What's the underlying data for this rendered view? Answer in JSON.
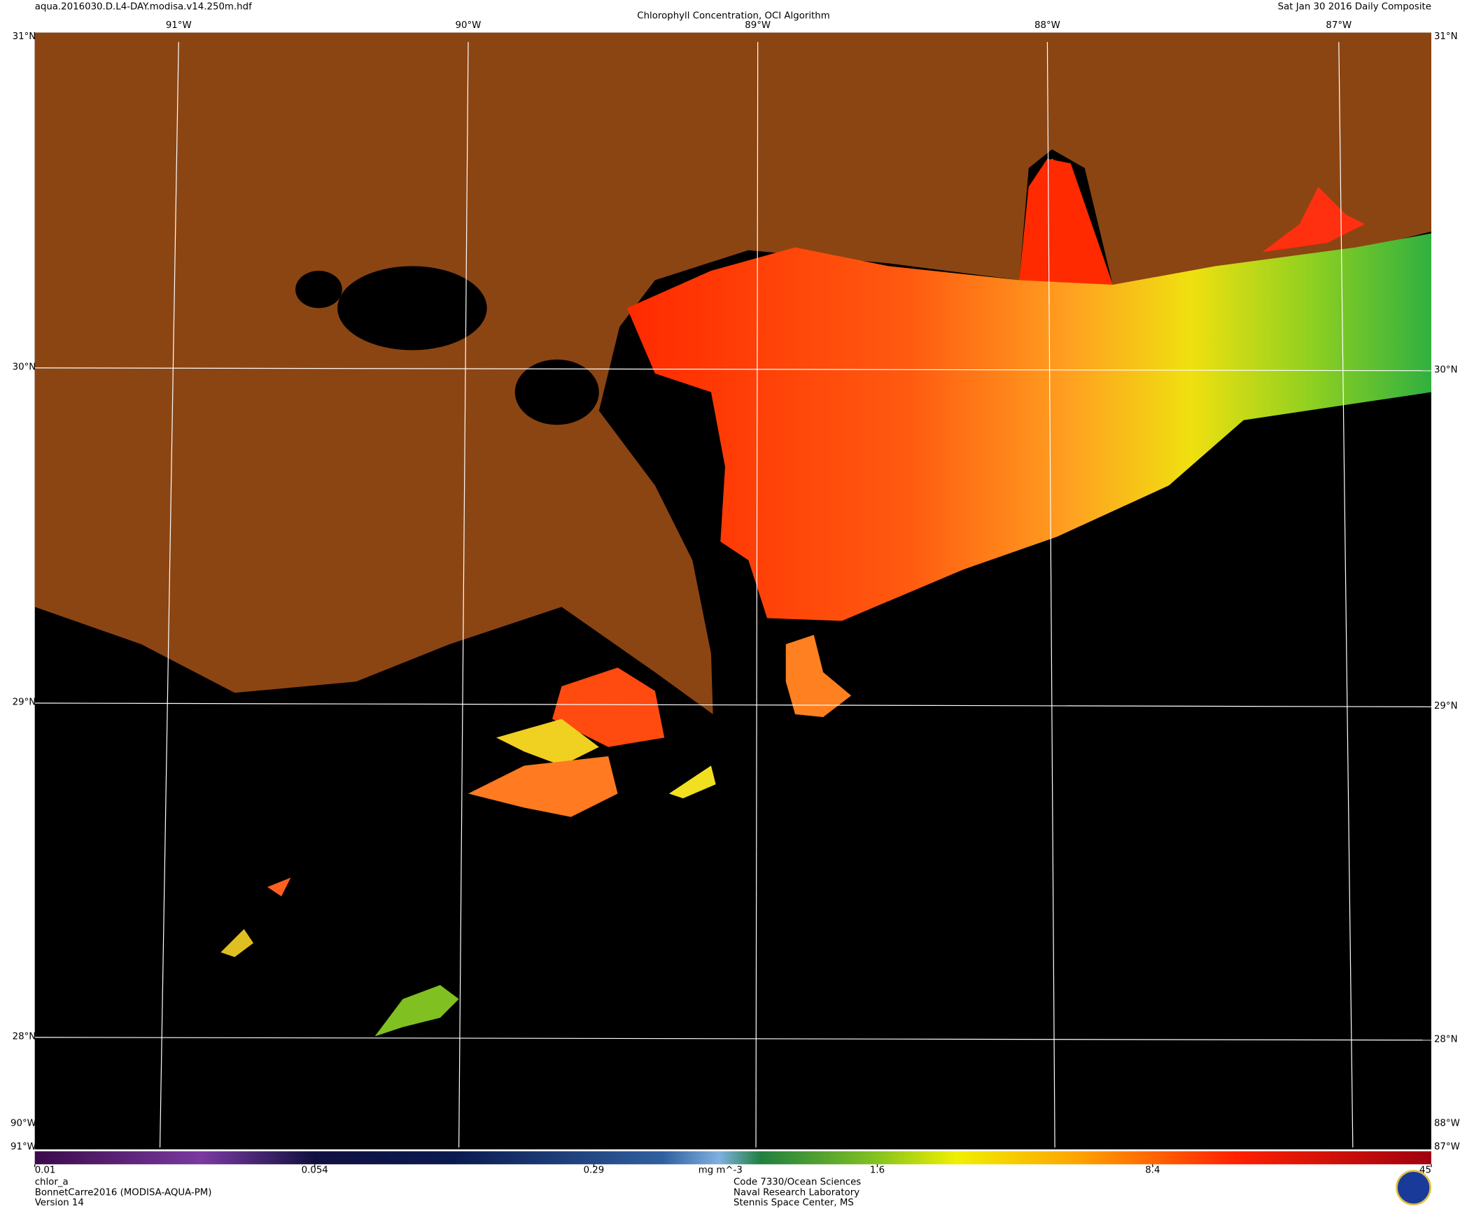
{
  "header": {
    "filename": "aqua.2016030.D.L4-DAY.modisa.v14.250m.hdf",
    "title": "Chlorophyll Concentration, OCI Algorithm",
    "date": "Sat Jan 30 2016 Daily Composite"
  },
  "map": {
    "lat_labels": [
      "31°N",
      "30°N",
      "29°N",
      "28°N"
    ],
    "lon_labels": [
      "91°W",
      "90°W",
      "89°W",
      "88°W",
      "87°W"
    ],
    "left_bottom_labels": [
      "90°W",
      "91°W"
    ],
    "right_bottom_labels": [
      "88°W",
      "87°W"
    ]
  },
  "colorbar": {
    "variable": "chlor_a",
    "units": "mg m^-3",
    "scale": "log",
    "lim": [
      0.01,
      45
    ],
    "ticks": [
      0.01,
      0.054,
      0.29,
      1.6,
      8.4,
      45
    ]
  },
  "footer": {
    "left": [
      "BonnetCarre2016 (MODISA-AQUA-PM)",
      "Version 14"
    ],
    "center": [
      "Code 7330/Ocean Sciences",
      "Naval Research Laboratory",
      "Stennis Space Center, MS"
    ]
  }
}
